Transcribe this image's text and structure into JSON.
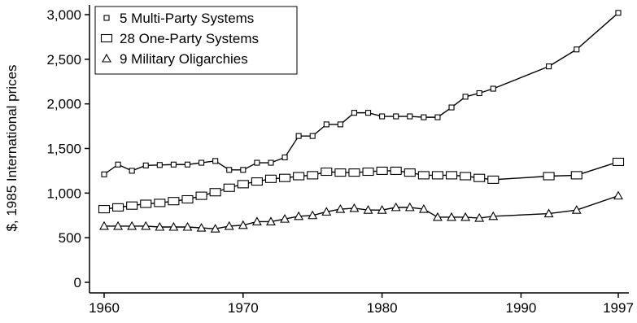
{
  "chart_data": {
    "type": "line",
    "title": "",
    "xlabel": "",
    "ylabel": "$, 1985 International prices",
    "xlim": [
      1960,
      1997
    ],
    "ylim": [
      0,
      3000
    ],
    "x_ticks": [
      "1960",
      "1970",
      "1980",
      "1990",
      "1997"
    ],
    "y_ticks": [
      "0",
      "500",
      "1,000",
      "1,500",
      "2,000",
      "2,500",
      "3,000"
    ],
    "grid": false,
    "legend_position": "top-left",
    "series": [
      {
        "name": "5 Multi-Party Systems",
        "marker": "small-square",
        "x": [
          1960,
          1961,
          1962,
          1963,
          1964,
          1965,
          1966,
          1967,
          1968,
          1969,
          1970,
          1971,
          1972,
          1973,
          1974,
          1975,
          1976,
          1977,
          1978,
          1979,
          1980,
          1981,
          1982,
          1983,
          1984,
          1985,
          1986,
          1987,
          1988,
          1992,
          1994,
          1997
        ],
        "values": [
          1210,
          1320,
          1250,
          1310,
          1315,
          1320,
          1320,
          1340,
          1360,
          1260,
          1260,
          1340,
          1340,
          1400,
          1640,
          1640,
          1770,
          1770,
          1900,
          1900,
          1860,
          1860,
          1860,
          1850,
          1850,
          1960,
          2080,
          2120,
          2170,
          2420,
          2610,
          3020
        ]
      },
      {
        "name": "28 One-Party Systems",
        "marker": "large-square",
        "x": [
          1960,
          1961,
          1962,
          1963,
          1964,
          1965,
          1966,
          1967,
          1968,
          1969,
          1970,
          1971,
          1972,
          1973,
          1974,
          1975,
          1976,
          1977,
          1978,
          1979,
          1980,
          1981,
          1982,
          1983,
          1984,
          1985,
          1986,
          1987,
          1988,
          1992,
          1994,
          1997
        ],
        "values": [
          820,
          840,
          860,
          880,
          890,
          910,
          930,
          970,
          1010,
          1060,
          1100,
          1130,
          1160,
          1170,
          1190,
          1200,
          1240,
          1230,
          1230,
          1240,
          1250,
          1250,
          1230,
          1200,
          1200,
          1200,
          1190,
          1170,
          1150,
          1190,
          1200,
          1350
        ]
      },
      {
        "name": "9 Military Oligarchies",
        "marker": "triangle",
        "x": [
          1960,
          1961,
          1962,
          1963,
          1964,
          1965,
          1966,
          1967,
          1968,
          1969,
          1970,
          1971,
          1972,
          1973,
          1974,
          1975,
          1976,
          1977,
          1978,
          1979,
          1980,
          1981,
          1982,
          1983,
          1984,
          1985,
          1986,
          1987,
          1988,
          1992,
          1994,
          1997
        ],
        "values": [
          630,
          630,
          630,
          630,
          620,
          620,
          620,
          610,
          600,
          630,
          640,
          680,
          680,
          710,
          740,
          750,
          790,
          820,
          830,
          810,
          810,
          840,
          840,
          820,
          730,
          730,
          730,
          720,
          740,
          770,
          810,
          970
        ]
      }
    ]
  }
}
